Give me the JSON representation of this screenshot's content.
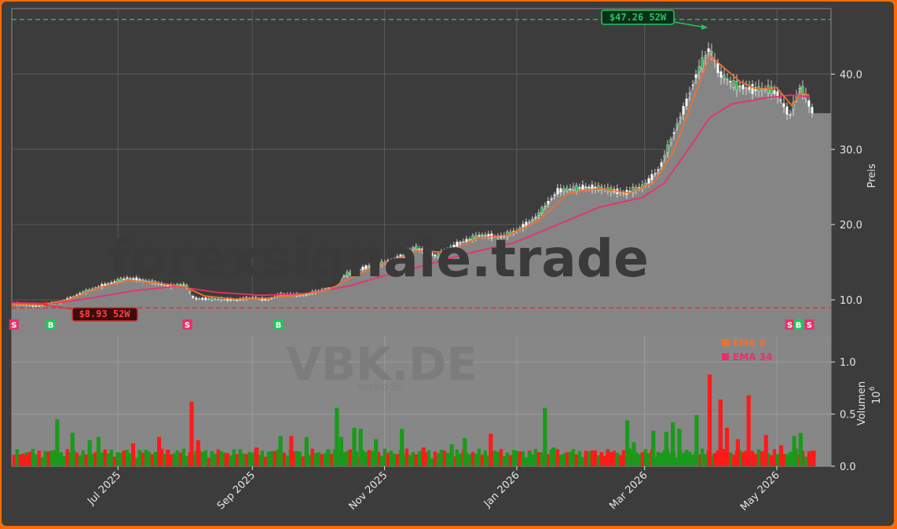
{
  "chart_data": {
    "type": "candlestick",
    "ticker": "VBK.DE",
    "watermark": "forexsignale.trade",
    "watermark_sub": "VBK.DE",
    "watermark_sub2": "Verbio SE",
    "ylabel_price": "Preis",
    "ylabel_volume": "Volumen",
    "volume_exponent": "10",
    "volume_exponent_power": "6",
    "x_ticks": [
      "Jul 2025",
      "Sep 2025",
      "Nov 2025",
      "Jan 2026",
      "Mar 2026",
      "May 2026"
    ],
    "x_tick_dates": [
      "2025-07-01",
      "2025-09-01",
      "2025-11-01",
      "2026-01-01",
      "2026-03-01",
      "2026-05-01"
    ],
    "x_range": [
      "2025-05-13",
      "2026-05-26"
    ],
    "price_ticks": [
      "10.0",
      "20.0",
      "30.0",
      "40.0"
    ],
    "price_tick_values": [
      10,
      20,
      30,
      40
    ],
    "price_range": [
      5.2,
      48.7
    ],
    "volume_ticks": [
      "0.0",
      "0.5",
      "1.0"
    ],
    "volume_tick_values": [
      0,
      0.5,
      1.0
    ],
    "volume_range": [
      0,
      1.25
    ],
    "high_52w": {
      "value": 47.26,
      "label": "$47.26 52W",
      "date": "2026-03-31"
    },
    "low_52w": {
      "value": 8.93,
      "label": "$8.93 52W",
      "date": "2025-05-26"
    },
    "legend": [
      {
        "label": "EMA 8",
        "color": "#f07030"
      },
      {
        "label": "EMA 34",
        "color": "#e8306a"
      }
    ],
    "signals": [
      {
        "type": "S",
        "date": "2025-05-14"
      },
      {
        "type": "B",
        "date": "2025-05-31"
      },
      {
        "type": "S",
        "date": "2025-08-02"
      },
      {
        "type": "B",
        "date": "2025-09-13"
      },
      {
        "type": "S",
        "date": "2026-05-07"
      },
      {
        "type": "B",
        "date": "2026-05-11"
      },
      {
        "type": "S",
        "date": "2026-05-16"
      }
    ],
    "price_series": [
      [
        "2025-05-13",
        9.5
      ],
      [
        "2025-05-25",
        9.2
      ],
      [
        "2025-06-05",
        9.7
      ],
      [
        "2025-06-15",
        11.0
      ],
      [
        "2025-06-25",
        12.0
      ],
      [
        "2025-07-05",
        12.9
      ],
      [
        "2025-07-15",
        12.5
      ],
      [
        "2025-07-25",
        11.8
      ],
      [
        "2025-08-01",
        12.1
      ],
      [
        "2025-08-05",
        10.2
      ],
      [
        "2025-08-15",
        10.1
      ],
      [
        "2025-08-25",
        10.0
      ],
      [
        "2025-09-01",
        10.3
      ],
      [
        "2025-09-08",
        10.0
      ],
      [
        "2025-09-15",
        10.8
      ],
      [
        "2025-09-25",
        10.6
      ],
      [
        "2025-10-05",
        11.5
      ],
      [
        "2025-10-15",
        13.5
      ],
      [
        "2025-10-25",
        14.5
      ],
      [
        "2025-11-05",
        15.2
      ],
      [
        "2025-11-15",
        17.0
      ],
      [
        "2025-11-25",
        15.8
      ],
      [
        "2025-12-05",
        17.5
      ],
      [
        "2025-12-15",
        18.6
      ],
      [
        "2025-12-25",
        18.4
      ],
      [
        "2026-01-01",
        19.2
      ],
      [
        "2026-01-10",
        21.0
      ],
      [
        "2026-01-20",
        24.5
      ],
      [
        "2026-02-01",
        25.0
      ],
      [
        "2026-02-10",
        24.8
      ],
      [
        "2026-02-20",
        24.2
      ],
      [
        "2026-03-01",
        25.2
      ],
      [
        "2026-03-08",
        27.5
      ],
      [
        "2026-03-15",
        32.5
      ],
      [
        "2026-03-20",
        36.0
      ],
      [
        "2026-03-25",
        40.0
      ],
      [
        "2026-03-31",
        43.5
      ],
      [
        "2026-04-05",
        40.0
      ],
      [
        "2026-04-12",
        38.5
      ],
      [
        "2026-04-20",
        38.0
      ],
      [
        "2026-04-27",
        38.0
      ],
      [
        "2026-05-01",
        37.5
      ],
      [
        "2026-05-07",
        34.5
      ],
      [
        "2026-05-12",
        38.5
      ],
      [
        "2026-05-16",
        36.0
      ],
      [
        "2026-05-18",
        34.8
      ],
      [
        "2026-05-26",
        34.8
      ]
    ],
    "ema8_series": [
      [
        "2025-05-13",
        9.4
      ],
      [
        "2025-05-26",
        9.3
      ],
      [
        "2025-06-08",
        10.0
      ],
      [
        "2025-06-22",
        11.6
      ],
      [
        "2025-07-06",
        12.6
      ],
      [
        "2025-07-20",
        12.2
      ],
      [
        "2025-08-01",
        11.7
      ],
      [
        "2025-08-10",
        10.5
      ],
      [
        "2025-08-24",
        10.1
      ],
      [
        "2025-09-07",
        10.2
      ],
      [
        "2025-09-21",
        10.6
      ],
      [
        "2025-10-05",
        11.2
      ],
      [
        "2025-10-19",
        13.3
      ],
      [
        "2025-11-02",
        15.0
      ],
      [
        "2025-11-16",
        16.5
      ],
      [
        "2025-11-30",
        16.3
      ],
      [
        "2025-12-14",
        18.2
      ],
      [
        "2025-12-28",
        18.6
      ],
      [
        "2026-01-11",
        20.5
      ],
      [
        "2026-01-25",
        24.2
      ],
      [
        "2026-02-08",
        24.8
      ],
      [
        "2026-02-22",
        24.2
      ],
      [
        "2026-03-05",
        25.5
      ],
      [
        "2026-03-14",
        29.5
      ],
      [
        "2026-03-22",
        35.5
      ],
      [
        "2026-03-31",
        42.5
      ],
      [
        "2026-04-06",
        41.0
      ],
      [
        "2026-04-14",
        39.0
      ],
      [
        "2026-04-22",
        38.0
      ],
      [
        "2026-05-01",
        38.2
      ],
      [
        "2026-05-08",
        35.8
      ],
      [
        "2026-05-12",
        37.5
      ],
      [
        "2026-05-16",
        37.2
      ]
    ],
    "ema34_series": [
      [
        "2025-05-13",
        9.6
      ],
      [
        "2025-06-01",
        9.5
      ],
      [
        "2025-06-20",
        10.3
      ],
      [
        "2025-07-08",
        11.2
      ],
      [
        "2025-07-28",
        11.8
      ],
      [
        "2025-08-15",
        11.0
      ],
      [
        "2025-09-05",
        10.6
      ],
      [
        "2025-09-25",
        10.8
      ],
      [
        "2025-10-15",
        11.8
      ],
      [
        "2025-11-01",
        13.2
      ],
      [
        "2025-11-20",
        14.6
      ],
      [
        "2025-12-10",
        16.2
      ],
      [
        "2025-12-31",
        17.6
      ],
      [
        "2026-01-20",
        20.0
      ],
      [
        "2026-02-08",
        22.3
      ],
      [
        "2026-02-28",
        23.6
      ],
      [
        "2026-03-10",
        25.5
      ],
      [
        "2026-03-20",
        29.5
      ],
      [
        "2026-03-31",
        34.2
      ],
      [
        "2026-04-10",
        36.0
      ],
      [
        "2026-04-25",
        36.8
      ],
      [
        "2026-05-07",
        37.2
      ],
      [
        "2026-05-16",
        37.0
      ]
    ],
    "volume_series": [
      [
        "2025-05-20",
        0.1
      ],
      [
        "2025-06-03",
        0.45
      ],
      [
        "2025-06-10",
        0.32
      ],
      [
        "2025-06-18",
        0.25
      ],
      [
        "2025-06-22",
        0.28
      ],
      [
        "2025-07-08",
        0.22
      ],
      [
        "2025-07-20",
        0.28
      ],
      [
        "2025-07-24",
        0.16
      ],
      [
        "2025-08-04",
        0.62
      ],
      [
        "2025-08-07",
        0.25
      ],
      [
        "2025-08-20",
        0.12
      ],
      [
        "2025-09-03",
        0.18
      ],
      [
        "2025-09-14",
        0.29
      ],
      [
        "2025-09-19",
        0.29
      ],
      [
        "2025-09-26",
        0.28
      ],
      [
        "2025-10-06",
        0.16
      ],
      [
        "2025-10-10",
        0.56
      ],
      [
        "2025-10-12",
        0.28
      ],
      [
        "2025-10-18",
        0.37
      ],
      [
        "2025-10-21",
        0.36
      ],
      [
        "2025-10-28",
        0.26
      ],
      [
        "2025-11-09",
        0.36
      ],
      [
        "2025-11-19",
        0.18
      ],
      [
        "2025-12-02",
        0.21
      ],
      [
        "2025-12-08",
        0.27
      ],
      [
        "2025-12-20",
        0.31
      ],
      [
        "2026-01-07",
        0.14
      ],
      [
        "2026-01-14",
        0.56
      ],
      [
        "2026-01-18",
        0.18
      ],
      [
        "2026-02-12",
        0.15
      ],
      [
        "2026-02-21",
        0.44
      ],
      [
        "2026-02-24",
        0.23
      ],
      [
        "2026-03-05",
        0.34
      ],
      [
        "2026-03-11",
        0.33
      ],
      [
        "2026-03-14",
        0.42
      ],
      [
        "2026-03-17",
        0.36
      ],
      [
        "2026-03-25",
        0.49
      ],
      [
        "2026-03-31",
        0.88
      ],
      [
        "2026-04-05",
        0.64
      ],
      [
        "2026-04-08",
        0.37
      ],
      [
        "2026-04-13",
        0.26
      ],
      [
        "2026-04-18",
        0.68
      ],
      [
        "2026-04-26",
        0.3
      ],
      [
        "2026-05-03",
        0.2
      ],
      [
        "2026-05-09",
        0.29
      ],
      [
        "2026-05-12",
        0.32
      ],
      [
        "2026-05-18",
        0.15
      ]
    ]
  }
}
